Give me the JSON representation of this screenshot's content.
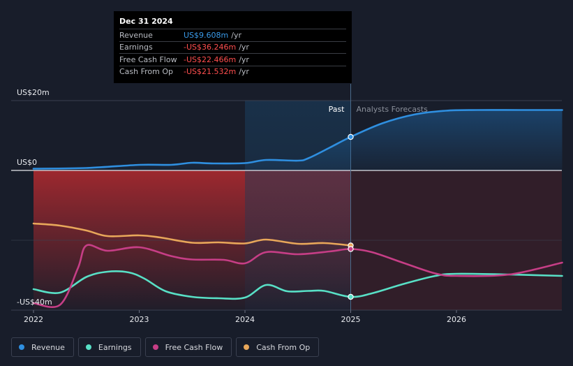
{
  "tooltip": {
    "date": "Dec 31 2024",
    "rows": [
      {
        "label": "Revenue",
        "value": "US$9.608m",
        "unit": "/yr",
        "color": "#3a9ae8"
      },
      {
        "label": "Earnings",
        "value": "-US$36.246m",
        "unit": "/yr",
        "color": "#ff4e4e"
      },
      {
        "label": "Free Cash Flow",
        "value": "-US$22.466m",
        "unit": "/yr",
        "color": "#ff4e4e"
      },
      {
        "label": "Cash From Op",
        "value": "-US$21.532m",
        "unit": "/yr",
        "color": "#ff4e4e"
      }
    ]
  },
  "chart_data": {
    "type": "line",
    "ylim": [
      -40,
      20
    ],
    "xlim": [
      2022,
      2027
    ],
    "y_tick_labels": [
      {
        "label": "US$20m",
        "value": 20
      },
      {
        "label": "US$0",
        "value": 0
      },
      {
        "label": "-US$40m",
        "value": -40
      }
    ],
    "x_ticks": [
      {
        "label": "2022",
        "value": 2022
      },
      {
        "label": "2023",
        "value": 2023
      },
      {
        "label": "2024",
        "value": 2024
      },
      {
        "label": "2025",
        "value": 2025
      },
      {
        "label": "2026",
        "value": 2026
      }
    ],
    "past_label": "Past",
    "forecast_label": "Analysts Forecasts",
    "highlight_start": 2024.0,
    "divider": 2025.0,
    "series": [
      {
        "name": "Revenue",
        "color": "#2f8fe0",
        "fill": true,
        "x": [
          2022,
          2022.5,
          2023,
          2023.3,
          2023.5,
          2023.7,
          2024,
          2024.2,
          2024.5,
          2024.6,
          2024.8,
          2025,
          2025.3,
          2025.6,
          2025.9,
          2026.2,
          2026.6,
          2027
        ],
        "y": [
          0.5,
          0.7,
          1.6,
          1.6,
          2.2,
          2.0,
          2.1,
          3.0,
          2.8,
          3.5,
          6.5,
          9.6,
          13.5,
          16.0,
          17.1,
          17.3,
          17.3,
          17.3
        ]
      },
      {
        "name": "Earnings",
        "color": "#58e0c6",
        "fill": false,
        "x": [
          2022,
          2022.25,
          2022.5,
          2022.7,
          2022.9,
          2023.05,
          2023.25,
          2023.5,
          2023.75,
          2024,
          2024.2,
          2024.4,
          2024.6,
          2024.75,
          2025,
          2025.2,
          2025.5,
          2025.8,
          2026,
          2026.5,
          2027
        ],
        "y": [
          -34,
          -35,
          -30.5,
          -29,
          -29.2,
          -31,
          -34.6,
          -36.2,
          -36.6,
          -36.4,
          -32.8,
          -34.6,
          -34.5,
          -34.5,
          -36.2,
          -35.2,
          -32.5,
          -30.2,
          -29.6,
          -29.8,
          -30.2
        ]
      },
      {
        "name": "Free Cash Flow",
        "color": "#c63e86",
        "fill": false,
        "x": [
          2022,
          2022.25,
          2022.42,
          2022.5,
          2022.7,
          2023,
          2023.3,
          2023.5,
          2023.8,
          2024,
          2024.2,
          2024.5,
          2024.8,
          2025,
          2025.2,
          2025.5,
          2025.8,
          2026,
          2026.5,
          2027
        ],
        "y": [
          -38,
          -38.5,
          -28,
          -21.5,
          -23,
          -22,
          -24.5,
          -25.5,
          -25.6,
          -26.6,
          -23.4,
          -24,
          -23.2,
          -22.5,
          -23.4,
          -26.5,
          -29.5,
          -30.2,
          -29.8,
          -26.4
        ]
      },
      {
        "name": "Cash From Op",
        "color": "#e8a75a",
        "fill": false,
        "x": [
          2022,
          2022.25,
          2022.5,
          2022.7,
          2023,
          2023.2,
          2023.5,
          2023.75,
          2024,
          2024.2,
          2024.5,
          2024.75,
          2025
        ],
        "y": [
          -15.2,
          -15.8,
          -17.2,
          -18.8,
          -18.6,
          -19.2,
          -20.7,
          -20.6,
          -20.9,
          -19.8,
          -21,
          -20.8,
          -21.5
        ]
      }
    ],
    "markers": [
      {
        "series": "Revenue",
        "x": 2025,
        "y": 9.6,
        "color": "#2f8fe0"
      },
      {
        "series": "Cash From Op",
        "x": 2025,
        "y": -21.5,
        "color": "#e8a75a"
      },
      {
        "series": "Free Cash Flow",
        "x": 2025,
        "y": -22.5,
        "color": "#c63e86"
      },
      {
        "series": "Earnings",
        "x": 2025,
        "y": -36.2,
        "color": "#58e0c6"
      }
    ]
  },
  "legend": [
    {
      "label": "Revenue",
      "color": "#2f8fe0"
    },
    {
      "label": "Earnings",
      "color": "#58e0c6"
    },
    {
      "label": "Free Cash Flow",
      "color": "#c63e86"
    },
    {
      "label": "Cash From Op",
      "color": "#e8a75a"
    }
  ]
}
